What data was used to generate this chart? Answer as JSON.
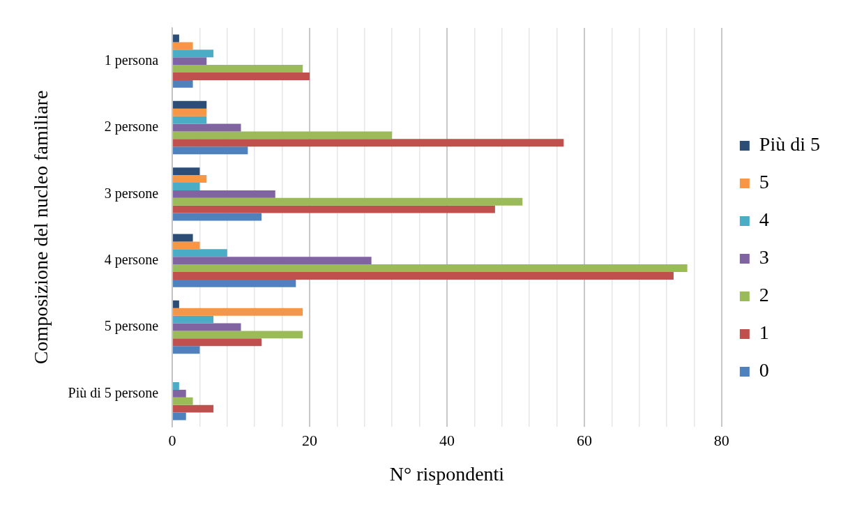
{
  "chart_data": {
    "type": "bar",
    "orientation": "horizontal",
    "xlabel": "N° rispondenti",
    "ylabel": "Composizione del nucleo familiare",
    "categories": [
      "1 persona",
      "2 persone",
      "3 persone",
      "4 persone",
      "5 persone",
      "Più di 5 persone"
    ],
    "series": [
      {
        "name": "Più di 5",
        "color": "#2c4d75",
        "values": [
          1,
          5,
          4,
          3,
          1,
          0
        ]
      },
      {
        "name": "5",
        "color": "#f79646",
        "values": [
          3,
          5,
          5,
          4,
          19,
          0
        ]
      },
      {
        "name": "4",
        "color": "#4bacc6",
        "values": [
          6,
          5,
          4,
          8,
          6,
          1
        ]
      },
      {
        "name": "3",
        "color": "#8064a2",
        "values": [
          5,
          10,
          15,
          29,
          10,
          2
        ]
      },
      {
        "name": "2",
        "color": "#9bbb59",
        "values": [
          19,
          32,
          51,
          75,
          19,
          3
        ]
      },
      {
        "name": "1",
        "color": "#c0504d",
        "values": [
          20,
          57,
          47,
          73,
          13,
          6
        ]
      },
      {
        "name": "0",
        "color": "#4f81bd",
        "values": [
          3,
          11,
          13,
          18,
          4,
          2
        ]
      }
    ],
    "xlim": [
      0,
      80
    ],
    "xticks": [
      0,
      {
        "value": 4,
        "label": null
      },
      {
        "value": 8,
        "label": null
      },
      {
        "value": 12,
        "label": null
      },
      {
        "value": 16,
        "label": null
      },
      20,
      {
        "value": 24,
        "label": null
      },
      {
        "value": 28,
        "label": null
      },
      {
        "value": 32,
        "label": null
      },
      {
        "value": 36,
        "label": null
      },
      40,
      {
        "value": 44,
        "label": null
      },
      {
        "value": 48,
        "label": null
      },
      {
        "value": 52,
        "label": null
      },
      {
        "value": 56,
        "label": null
      },
      60,
      {
        "value": 64,
        "label": null
      },
      {
        "value": 68,
        "label": null
      },
      {
        "value": 72,
        "label": null
      },
      {
        "value": 76,
        "label": null
      },
      80
    ],
    "grid": "x",
    "legend": "right"
  }
}
